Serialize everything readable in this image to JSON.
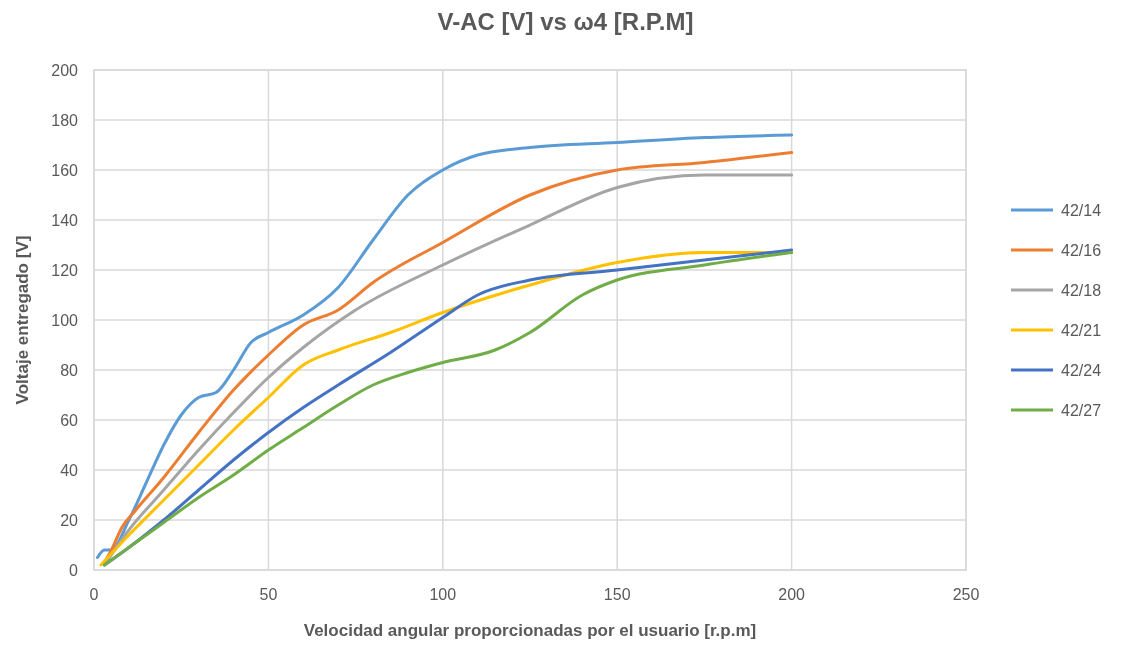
{
  "chart_data": {
    "type": "line",
    "title": "V-AC [V] vs ω4 [R.P.M]",
    "xlabel": "Velocidad angular proporcionadas por el usuario [r.p.m]",
    "ylabel": "Voltaje entregado [V]",
    "xlim": [
      0,
      250
    ],
    "xticks": [
      0,
      50,
      100,
      150,
      200,
      250
    ],
    "ylim": [
      0,
      200
    ],
    "yticks": [
      0,
      20,
      40,
      60,
      80,
      100,
      120,
      140,
      160,
      180,
      200
    ],
    "grid": true,
    "legend": "right",
    "marker": "none",
    "line_style": "solid",
    "series": [
      {
        "name": "42/14",
        "color": "#5b9bd5",
        "x": [
          1,
          3,
          5,
          10,
          15,
          20,
          25,
          30,
          35,
          40,
          45,
          50,
          60,
          70,
          80,
          90,
          100,
          110,
          125,
          150,
          175,
          200
        ],
        "values": [
          5,
          8,
          8,
          20,
          35,
          50,
          62,
          69,
          71,
          80,
          91,
          95,
          102,
          113,
          132,
          150,
          160,
          166,
          169,
          171,
          173,
          174
        ]
      },
      {
        "name": "42/16",
        "color": "#ed7d31",
        "x": [
          3,
          5,
          8,
          12,
          20,
          30,
          40,
          50,
          60,
          70,
          80,
          100,
          125,
          150,
          175,
          200
        ],
        "values": [
          3,
          8,
          17,
          24,
          37,
          55,
          72,
          86,
          98,
          104,
          115,
          131,
          150,
          160,
          163,
          167
        ]
      },
      {
        "name": "42/18",
        "color": "#a5a5a5",
        "x": [
          3,
          10,
          20,
          30,
          40,
          50,
          60,
          75,
          100,
          125,
          150,
          175,
          200
        ],
        "values": [
          2,
          16,
          32,
          48,
          63,
          77,
          89,
          104,
          122,
          138,
          153,
          158,
          158
        ]
      },
      {
        "name": "42/21",
        "color": "#ffc000",
        "x": [
          2,
          10,
          20,
          30,
          40,
          50,
          60,
          70,
          85,
          100,
          125,
          150,
          175,
          200
        ],
        "values": [
          2,
          14,
          28,
          42,
          56,
          69,
          82,
          88,
          95,
          103,
          114,
          123,
          127,
          127
        ]
      },
      {
        "name": "42/24",
        "color": "#4472c4",
        "x": [
          3,
          10,
          20,
          30,
          40,
          50,
          60,
          70,
          85,
          100,
          110,
          125,
          150,
          175,
          200
        ],
        "values": [
          2,
          9,
          20,
          32,
          44,
          55,
          65,
          74,
          87,
          101,
          110,
          116,
          120,
          124,
          128
        ]
      },
      {
        "name": "42/27",
        "color": "#70ad47",
        "x": [
          3,
          10,
          20,
          30,
          40,
          50,
          60,
          70,
          80,
          90,
          100,
          115,
          125,
          140,
          150,
          175,
          200
        ],
        "values": [
          2,
          9,
          19,
          29,
          38,
          48,
          57,
          66,
          74,
          79,
          83,
          88,
          95,
          110,
          116,
          122,
          127
        ]
      }
    ]
  }
}
